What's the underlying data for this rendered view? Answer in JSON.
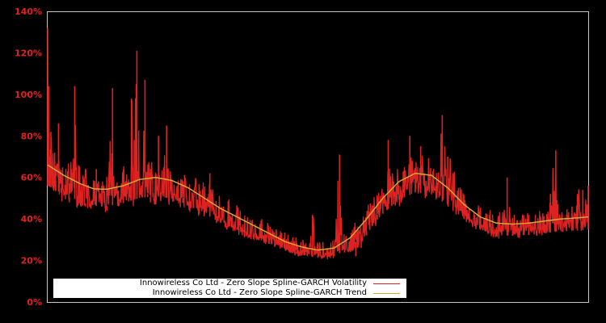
{
  "chart_data": {
    "type": "line",
    "title": "",
    "xlabel": "",
    "ylabel": "",
    "ylim": [
      0,
      140
    ],
    "y_ticks": [
      "0%",
      "20%",
      "40%",
      "60%",
      "80%",
      "100%",
      "120%",
      "140%"
    ],
    "y_tick_values": [
      0,
      20,
      40,
      60,
      80,
      100,
      120,
      140
    ],
    "grid": false,
    "legend_position": "lower-left",
    "x_domain": [
      0,
      1
    ],
    "series": [
      {
        "name": "Innowireless Co Ltd - Zero Slope Spline-GARCH Volatility",
        "color": "#dd2222",
        "x": [
          0.0,
          0.002,
          0.004,
          0.006,
          0.01,
          0.015,
          0.02,
          0.025,
          0.03,
          0.04,
          0.05,
          0.055,
          0.06,
          0.07,
          0.08,
          0.09,
          0.1,
          0.11,
          0.12,
          0.125,
          0.13,
          0.14,
          0.15,
          0.155,
          0.16,
          0.165,
          0.17,
          0.175,
          0.18,
          0.185,
          0.19,
          0.2,
          0.205,
          0.21,
          0.22,
          0.23,
          0.24,
          0.25,
          0.26,
          0.27,
          0.28,
          0.29,
          0.3,
          0.31,
          0.32,
          0.33,
          0.34,
          0.35,
          0.36,
          0.37,
          0.38,
          0.39,
          0.4,
          0.41,
          0.42,
          0.43,
          0.44,
          0.45,
          0.46,
          0.47,
          0.48,
          0.49,
          0.5,
          0.51,
          0.52,
          0.53,
          0.54,
          0.55,
          0.56,
          0.57,
          0.58,
          0.59,
          0.6,
          0.61,
          0.62,
          0.63,
          0.64,
          0.65,
          0.66,
          0.67,
          0.68,
          0.69,
          0.7,
          0.71,
          0.72,
          0.73,
          0.74,
          0.75,
          0.76,
          0.77,
          0.78,
          0.79,
          0.8,
          0.81,
          0.82,
          0.83,
          0.84,
          0.85,
          0.86,
          0.87,
          0.88,
          0.89,
          0.9,
          0.91,
          0.92,
          0.93,
          0.94,
          0.95,
          0.96,
          0.97,
          0.98,
          0.99,
          1.0
        ],
        "values": [
          132,
          104,
          70,
          82,
          60,
          58,
          86,
          55,
          52,
          48,
          104,
          47,
          49,
          46,
          45,
          64,
          56,
          44,
          103,
          47,
          50,
          64,
          58,
          98,
          78,
          121,
          60,
          55,
          107,
          52,
          48,
          47,
          80,
          51,
          85,
          52,
          55,
          50,
          48,
          47,
          46,
          45,
          62,
          42,
          40,
          38,
          37,
          36,
          34,
          33,
          32,
          31,
          30,
          29,
          28,
          30,
          26,
          25,
          24,
          23,
          22,
          42,
          28,
          25,
          24,
          23,
          71,
          26,
          24,
          22,
          26,
          32,
          38,
          42,
          50,
          78,
          58,
          56,
          55,
          80,
          60,
          75,
          58,
          56,
          55,
          90,
          70,
          62,
          55,
          50,
          45,
          42,
          38,
          35,
          34,
          36,
          35,
          60,
          38,
          36,
          40,
          42,
          38,
          38,
          37,
          52,
          73,
          40,
          42,
          46,
          52,
          54,
          56
        ]
      },
      {
        "name": "Innowireless Co Ltd - Zero Slope Spline-GARCH Trend",
        "color": "#d4a736",
        "x": [
          0.0,
          0.03,
          0.06,
          0.085,
          0.11,
          0.14,
          0.17,
          0.2,
          0.23,
          0.26,
          0.29,
          0.32,
          0.35,
          0.38,
          0.41,
          0.44,
          0.47,
          0.5,
          0.53,
          0.56,
          0.59,
          0.62,
          0.65,
          0.68,
          0.71,
          0.74,
          0.77,
          0.8,
          0.83,
          0.86,
          0.89,
          0.92,
          0.95,
          0.98,
          1.0
        ],
        "values": [
          66,
          61,
          57,
          54.5,
          54.3,
          56,
          59,
          60,
          58.5,
          55,
          50,
          45,
          41,
          37,
          33,
          29,
          26.5,
          25,
          26,
          31,
          40,
          50,
          58,
          62,
          61,
          55,
          47,
          41,
          38,
          37.5,
          38,
          39,
          40,
          40.5,
          41
        ]
      }
    ]
  },
  "legend": {
    "items": [
      {
        "label": "Innowireless Co Ltd - Zero Slope Spline-GARCH Volatility",
        "color": "#dd2222"
      },
      {
        "label": "Innowireless Co Ltd - Zero Slope Spline-GARCH Trend",
        "color": "#d4a736"
      }
    ]
  },
  "colors": {
    "background": "#000000",
    "plot_border": "#c8c8c8",
    "tick_label": "#dd2222"
  }
}
